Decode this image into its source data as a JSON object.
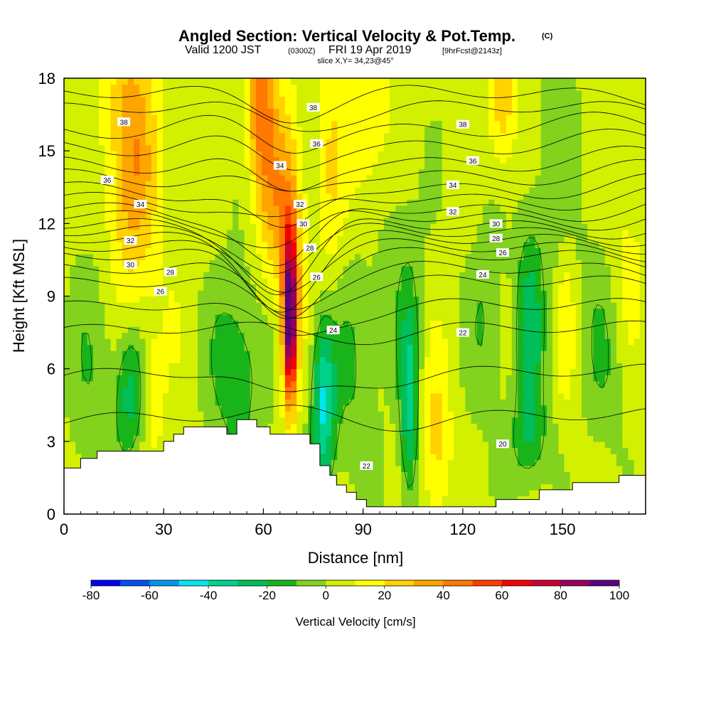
{
  "title": {
    "main": "Angled Section: Vertical Velocity & Pot.Temp.",
    "copyright": "(C)",
    "valid_prefix": "Valid 1200 JST",
    "valid_utc": "(0300Z)",
    "valid_date": "FRI 19 Apr 2019",
    "forecast": "[9hrFcst@2143z]",
    "slice": "slice X,Y= 34,23@45°"
  },
  "chart_data": {
    "type": "heatmap",
    "xlabel": "Distance [nm]",
    "ylabel": "Height [Kft MSL]",
    "xlim": [
      0,
      175
    ],
    "ylim": [
      0,
      18
    ],
    "x_ticks": [
      {
        "v": 0,
        "label": "0"
      },
      {
        "v": 30,
        "label": "30"
      },
      {
        "v": 60,
        "label": "60"
      },
      {
        "v": 90,
        "label": "90"
      },
      {
        "v": 120,
        "label": "120"
      },
      {
        "v": 150,
        "label": "150"
      }
    ],
    "y_ticks": [
      {
        "v": 0,
        "label": "0"
      },
      {
        "v": 3,
        "label": "3"
      },
      {
        "v": 6,
        "label": "6"
      },
      {
        "v": 9,
        "label": "9"
      },
      {
        "v": 12,
        "label": "12"
      },
      {
        "v": 15,
        "label": "15"
      },
      {
        "v": 18,
        "label": "18"
      }
    ],
    "colorbar": {
      "label": "Vertical Velocity [cm/s]",
      "min": -80,
      "max": 100,
      "step": 10,
      "colors": [
        "#0000f0",
        "#0050f0",
        "#0096f0",
        "#00e6f0",
        "#00d28c",
        "#00be5a",
        "#19b419",
        "#82d21e",
        "#d2f000",
        "#ffff00",
        "#ffd200",
        "#ffa500",
        "#ff7800",
        "#ff3c00",
        "#f00000",
        "#c80032",
        "#96005a",
        "#5a0082"
      ],
      "tick_labels": [
        {
          "v": -80,
          "label": "-80"
        },
        {
          "v": -60,
          "label": "-60"
        },
        {
          "v": -40,
          "label": "-40"
        },
        {
          "v": -20,
          "label": "-20"
        },
        {
          "v": 0,
          "label": "0"
        },
        {
          "v": 20,
          "label": "20"
        },
        {
          "v": 40,
          "label": "40"
        },
        {
          "v": 60,
          "label": "60"
        },
        {
          "v": 80,
          "label": "80"
        },
        {
          "v": 100,
          "label": "100"
        }
      ]
    },
    "terrain_profile": [
      [
        0,
        1.9
      ],
      [
        5,
        1.9
      ],
      [
        5,
        2.3
      ],
      [
        10,
        2.3
      ],
      [
        10,
        2.6
      ],
      [
        30,
        2.6
      ],
      [
        30,
        3.0
      ],
      [
        33,
        3.0
      ],
      [
        33,
        3.3
      ],
      [
        36,
        3.3
      ],
      [
        36,
        3.6
      ],
      [
        49,
        3.6
      ],
      [
        49,
        3.3
      ],
      [
        52,
        3.3
      ],
      [
        52,
        3.9
      ],
      [
        58,
        3.9
      ],
      [
        58,
        3.6
      ],
      [
        62,
        3.6
      ],
      [
        62,
        3.3
      ],
      [
        74,
        3.3
      ],
      [
        74,
        2.9
      ],
      [
        77,
        2.9
      ],
      [
        77,
        2.0
      ],
      [
        80,
        2.0
      ],
      [
        80,
        1.6
      ],
      [
        82,
        1.6
      ],
      [
        82,
        1.2
      ],
      [
        85,
        1.2
      ],
      [
        85,
        0.9
      ],
      [
        88,
        0.9
      ],
      [
        88,
        0.6
      ],
      [
        91,
        0.6
      ],
      [
        91,
        0.3
      ],
      [
        130,
        0.3
      ],
      [
        130,
        0.6
      ],
      [
        143,
        0.6
      ],
      [
        143,
        1.0
      ],
      [
        153,
        1.0
      ],
      [
        153,
        1.3
      ],
      [
        167,
        1.3
      ],
      [
        167,
        1.6
      ],
      [
        175,
        1.6
      ]
    ],
    "velocity_field": {
      "background": 4,
      "features": [
        {
          "x": 20,
          "z": 15,
          "sx": 5,
          "sz": 4.0,
          "amp": 30
        },
        {
          "x": 22,
          "z": 12,
          "sx": 9,
          "sz": 6.0,
          "amp": 6
        },
        {
          "x": 27,
          "z": 5,
          "sx": 2,
          "sz": 1.5,
          "amp": 14
        },
        {
          "x": 20,
          "z": 5,
          "sx": 3,
          "sz": 2.0,
          "amp": -28
        },
        {
          "x": 10,
          "z": 6,
          "sx": 6,
          "sz": 4.0,
          "amp": -14
        },
        {
          "x": 52,
          "z": 6,
          "sx": 6,
          "sz": 3.0,
          "amp": -22
        },
        {
          "x": 59,
          "z": 17,
          "sx": 3,
          "sz": 2.5,
          "amp": 38
        },
        {
          "x": 64,
          "z": 13,
          "sx": 4,
          "sz": 3.0,
          "amp": 26
        },
        {
          "x": 68,
          "z": 8,
          "sx": 1.5,
          "sz": 2.5,
          "amp": 95
        },
        {
          "x": 69,
          "z": 12,
          "sx": 3,
          "sz": 3.0,
          "amp": 16
        },
        {
          "x": 80,
          "z": 14,
          "sx": 3,
          "sz": 4.0,
          "amp": 14
        },
        {
          "x": 78,
          "z": 4.5,
          "sx": 2.5,
          "sz": 2.5,
          "amp": -45
        },
        {
          "x": 92,
          "z": 16,
          "sx": 5,
          "sz": 3.0,
          "amp": 18
        },
        {
          "x": 87,
          "z": 6,
          "sx": 5,
          "sz": 3.5,
          "amp": -14
        },
        {
          "x": 104,
          "z": 4.5,
          "sx": 2,
          "sz": 3.0,
          "amp": -35
        },
        {
          "x": 100,
          "z": 11,
          "sx": 6,
          "sz": 4.0,
          "amp": -10
        },
        {
          "x": 112,
          "z": 3,
          "sx": 3,
          "sz": 2.5,
          "amp": 20
        },
        {
          "x": 127,
          "z": 8,
          "sx": 4,
          "sz": 3.0,
          "amp": -14
        },
        {
          "x": 132,
          "z": 17,
          "sx": 3,
          "sz": 2.0,
          "amp": 24
        },
        {
          "x": 140,
          "z": 7.5,
          "sx": 3,
          "sz": 3.0,
          "amp": -28
        },
        {
          "x": 148,
          "z": 14,
          "sx": 6,
          "sz": 4.0,
          "amp": -10
        },
        {
          "x": 151,
          "z": 8,
          "sx": 2,
          "sz": 2.5,
          "amp": 14
        },
        {
          "x": 163,
          "z": 7,
          "sx": 5,
          "sz": 3.0,
          "amp": -14
        },
        {
          "x": 169,
          "z": 10,
          "sx": 4,
          "sz": 2.5,
          "amp": 12
        },
        {
          "x": 140,
          "z": 3,
          "sx": 5,
          "sz": 1.5,
          "amp": -16
        }
      ]
    },
    "isentropes": {
      "levels": [
        20,
        22,
        24,
        26,
        28,
        30,
        32,
        34,
        36,
        38
      ],
      "base_heights": {
        "20": 4.0,
        "22": 7.6,
        "24": 9.5,
        "26": 10.6,
        "28": 11.3,
        "30": 11.9,
        "32": 12.6,
        "34": 13.5,
        "36": 14.6,
        "38": 16.0
      },
      "mountain_wave": {
        "center_x": 66,
        "width": 10,
        "amp_dict": {
          "20": 0,
          "22": 0.2,
          "24": 1.2,
          "26": 2.0,
          "28": 2.4,
          "30": 2.6,
          "32": 2.6,
          "34": 2.2,
          "36": 1.6,
          "38": 1.0
        }
      }
    },
    "contour_labels": [
      {
        "x": 18,
        "z": 16.2,
        "label": "38"
      },
      {
        "x": 13,
        "z": 13.8,
        "label": "36"
      },
      {
        "x": 23,
        "z": 12.8,
        "label": "34"
      },
      {
        "x": 20,
        "z": 11.3,
        "label": "32"
      },
      {
        "x": 20,
        "z": 10.3,
        "label": "30"
      },
      {
        "x": 32,
        "z": 10.0,
        "label": "28"
      },
      {
        "x": 29,
        "z": 9.2,
        "label": "26"
      },
      {
        "x": 75,
        "z": 16.8,
        "label": "38"
      },
      {
        "x": 76,
        "z": 15.3,
        "label": "36"
      },
      {
        "x": 65,
        "z": 14.4,
        "label": "34"
      },
      {
        "x": 71,
        "z": 12.8,
        "label": "32"
      },
      {
        "x": 72,
        "z": 12.0,
        "label": "30"
      },
      {
        "x": 74,
        "z": 11.0,
        "label": "28"
      },
      {
        "x": 76,
        "z": 9.8,
        "label": "26"
      },
      {
        "x": 81,
        "z": 7.6,
        "label": "24"
      },
      {
        "x": 120,
        "z": 16.1,
        "label": "38"
      },
      {
        "x": 123,
        "z": 14.6,
        "label": "36"
      },
      {
        "x": 117,
        "z": 13.6,
        "label": "34"
      },
      {
        "x": 117,
        "z": 12.5,
        "label": "32"
      },
      {
        "x": 130,
        "z": 12.0,
        "label": "30"
      },
      {
        "x": 130,
        "z": 11.4,
        "label": "28"
      },
      {
        "x": 132,
        "z": 10.8,
        "label": "26"
      },
      {
        "x": 126,
        "z": 9.9,
        "label": "24"
      },
      {
        "x": 120,
        "z": 7.5,
        "label": "22"
      },
      {
        "x": 91,
        "z": 2.0,
        "label": "22"
      },
      {
        "x": 132,
        "z": 2.9,
        "label": "20"
      }
    ]
  }
}
